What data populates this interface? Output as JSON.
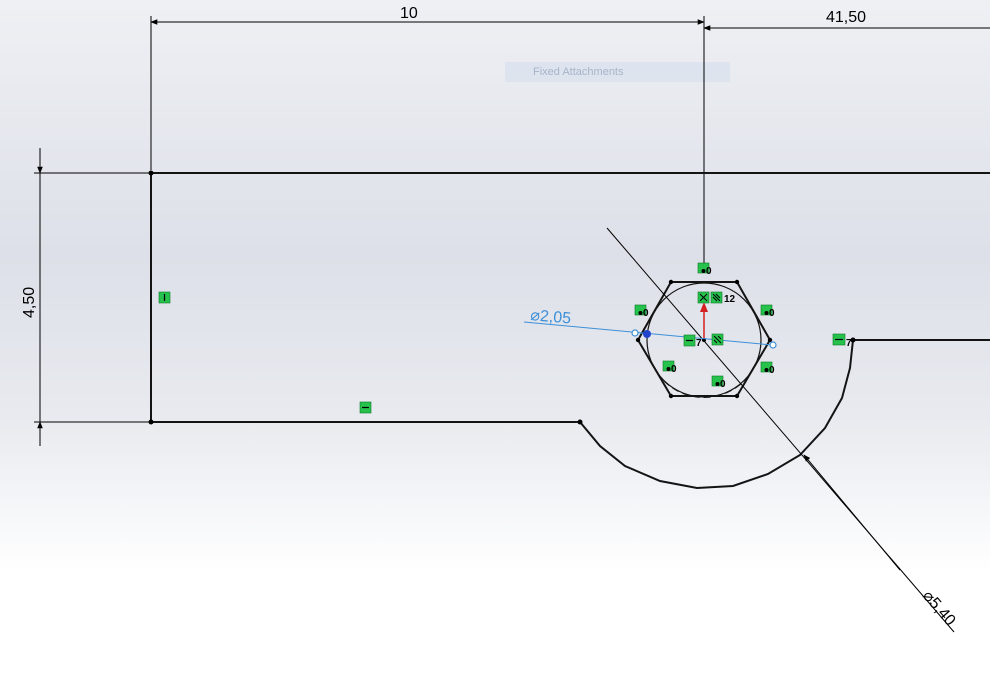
{
  "sketch": {
    "tooltip_ghost": "Fixed Attachments",
    "dimensions": {
      "horizontal_left": "10",
      "horizontal_right": "41,50",
      "vertical_left": "4,50",
      "diameter_small": "⌀2,05",
      "diameter_large": "⌀5,40"
    },
    "relation_labels": {
      "relation_12": "12",
      "relation_7a": "7",
      "relation_7b": "7",
      "relation_0": "0"
    },
    "colors": {
      "sketch_line": "#141414",
      "relation_icon": "#26c24b",
      "driven_dimension": "#3d8fd8",
      "origin_arrow": "#d42020"
    }
  }
}
